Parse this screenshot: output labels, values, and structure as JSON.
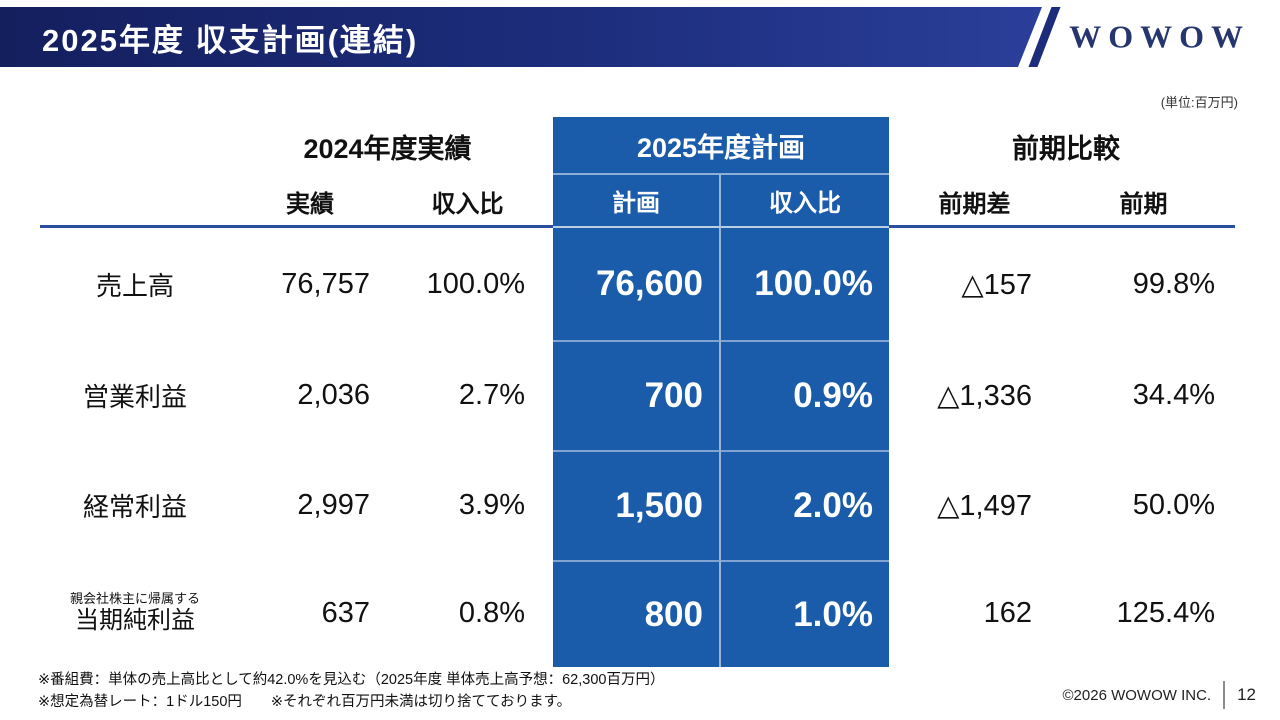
{
  "header": {
    "title": "2025年度 収支計画(連結)",
    "logo": "WOWOW"
  },
  "unit_note": "(単位:百万円)",
  "table": {
    "groups": [
      {
        "label": "2024年度実績"
      },
      {
        "label": "2025年度計画"
      },
      {
        "label": "前期比較"
      }
    ],
    "subheaders": [
      "実績",
      "収入比",
      "計画",
      "収入比",
      "前期差",
      "前期"
    ],
    "rows": [
      {
        "label": "売上高",
        "values": [
          "76,757",
          "100.0%",
          "76,600",
          "100.0%",
          "△157",
          "99.8%"
        ]
      },
      {
        "label": "営業利益",
        "values": [
          "2,036",
          "2.7%",
          "700",
          "0.9%",
          "△1,336",
          "34.4%"
        ]
      },
      {
        "label": "経常利益",
        "values": [
          "2,997",
          "3.9%",
          "1,500",
          "2.0%",
          "△1,497",
          "50.0%"
        ]
      },
      {
        "label": "当期純利益",
        "label_note": "親会社株主に帰属する",
        "values": [
          "637",
          "0.8%",
          "800",
          "1.0%",
          "162",
          "125.4%"
        ]
      }
    ]
  },
  "footnotes": [
    "※番組費：単体の売上高比として約42.0%を見込む（2025年度 単体売上高予想：62,300百万円）",
    "※想定為替レート：1ドル150円　　※それぞれ百万円未満は切り捨てております。"
  ],
  "footer": {
    "copyright": "©2026 WOWOW INC.",
    "page_number": "12"
  },
  "colors": {
    "header_navy_dark": "#141f5e",
    "header_navy_light": "#2a3f9a",
    "highlight_blue": "#1a5caa",
    "rule_blue": "#2a4da0",
    "logo_navy": "#27356f"
  }
}
